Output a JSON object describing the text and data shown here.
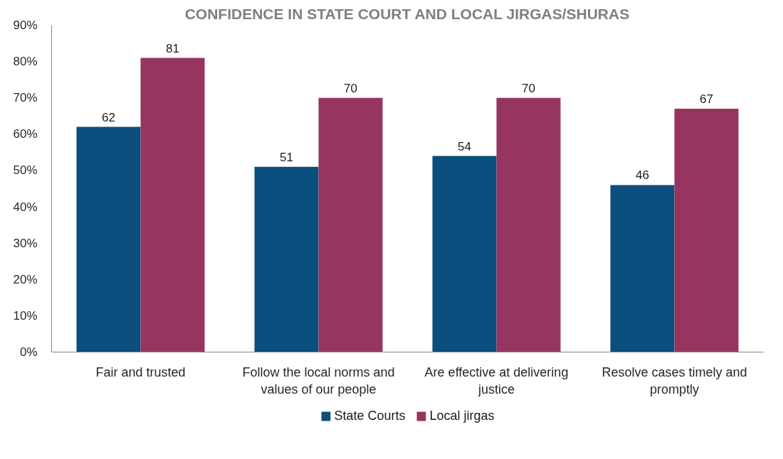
{
  "chart_data": {
    "type": "bar",
    "title": "CONFIDENCE IN STATE COURT AND LOCAL JIRGAS/SHURAS",
    "categories": [
      "Fair and trusted",
      "Follow the local norms and values of our people",
      "Are effective at delivering justice",
      "Resolve cases timely and promptly"
    ],
    "series": [
      {
        "name": "State Courts",
        "color": "#0a4f7d",
        "values": [
          62,
          51,
          54,
          46
        ]
      },
      {
        "name": "Local jirgas",
        "color": "#96355f",
        "values": [
          81,
          70,
          70,
          67
        ]
      }
    ],
    "ylim": [
      0,
      90
    ],
    "yticks": [
      {
        "value": 0,
        "label": "0%"
      },
      {
        "value": 10,
        "label": "10%"
      },
      {
        "value": 20,
        "label": "20%"
      },
      {
        "value": 30,
        "label": "30%"
      },
      {
        "value": 40,
        "label": "40%"
      },
      {
        "value": 50,
        "label": "50%"
      },
      {
        "value": 60,
        "label": "60%"
      },
      {
        "value": 70,
        "label": "70%"
      },
      {
        "value": 80,
        "label": "80%"
      },
      {
        "value": 90,
        "label": "90%"
      }
    ],
    "data_labels": true,
    "legend": "bottom",
    "grid": false
  }
}
